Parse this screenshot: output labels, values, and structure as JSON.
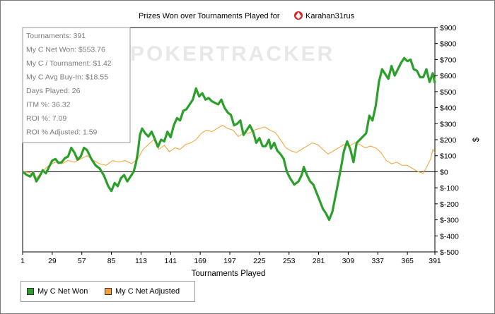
{
  "chart_data": {
    "type": "line",
    "title": "Prizes Won over Tournaments Played for",
    "player": "Karahan31rus",
    "xlabel": "Tournaments Played",
    "ylabel": "$",
    "watermark": "POKERTRACKER",
    "x_ticks": [
      1,
      29,
      57,
      85,
      113,
      141,
      169,
      197,
      225,
      253,
      281,
      309,
      337,
      365,
      391
    ],
    "y_ticks": [
      "$900",
      "$800",
      "$700",
      "$600",
      "$500",
      "$400",
      "$300",
      "$200",
      "$100",
      "$0",
      "$-100",
      "$-200",
      "$-300",
      "$-400",
      "$-500"
    ],
    "xlim": [
      1,
      391
    ],
    "ylim": [
      -500,
      900
    ],
    "y_right_axis": true,
    "grid": false,
    "legend_position": "bottom-left",
    "zero_line": true,
    "stats": [
      "Tournaments: 391",
      "My C Net Won: $553.76",
      "My C / Tournament: $1.42",
      "My C Avg Buy-In: $18.55",
      "Days Played: 26",
      "ITM %: 36.32",
      "ROI %: 7.09",
      "ROI % Adjusted: 1.59"
    ],
    "series": [
      {
        "name": "My C Net Won",
        "color": "#2aa02a",
        "points": [
          [
            1,
            0
          ],
          [
            5,
            -20
          ],
          [
            8,
            -30
          ],
          [
            11,
            -5
          ],
          [
            14,
            -60
          ],
          [
            17,
            -30
          ],
          [
            20,
            10
          ],
          [
            23,
            -10
          ],
          [
            26,
            30
          ],
          [
            29,
            70
          ],
          [
            32,
            80
          ],
          [
            35,
            55
          ],
          [
            38,
            60
          ],
          [
            41,
            85
          ],
          [
            44,
            95
          ],
          [
            47,
            150
          ],
          [
            50,
            120
          ],
          [
            53,
            75
          ],
          [
            56,
            95
          ],
          [
            59,
            150
          ],
          [
            62,
            135
          ],
          [
            66,
            80
          ],
          [
            70,
            40
          ],
          [
            74,
            20
          ],
          [
            78,
            -25
          ],
          [
            82,
            -90
          ],
          [
            85,
            -120
          ],
          [
            88,
            -70
          ],
          [
            91,
            -90
          ],
          [
            94,
            -40
          ],
          [
            97,
            -20
          ],
          [
            100,
            -60
          ],
          [
            103,
            -30
          ],
          [
            106,
            0
          ],
          [
            108,
            50
          ],
          [
            110,
            120
          ],
          [
            112,
            230
          ],
          [
            114,
            270
          ],
          [
            117,
            240
          ],
          [
            120,
            220
          ],
          [
            123,
            250
          ],
          [
            126,
            205
          ],
          [
            129,
            155
          ],
          [
            132,
            200
          ],
          [
            135,
            190
          ],
          [
            138,
            250
          ],
          [
            141,
            215
          ],
          [
            144,
            290
          ],
          [
            147,
            335
          ],
          [
            150,
            320
          ],
          [
            153,
            380
          ],
          [
            156,
            390
          ],
          [
            159,
            420
          ],
          [
            162,
            450
          ],
          [
            165,
            520
          ],
          [
            168,
            470
          ],
          [
            171,
            490
          ],
          [
            174,
            450
          ],
          [
            177,
            460
          ],
          [
            180,
            440
          ],
          [
            183,
            430
          ],
          [
            186,
            420
          ],
          [
            189,
            450
          ],
          [
            192,
            400
          ],
          [
            195,
            370
          ],
          [
            198,
            355
          ],
          [
            201,
            290
          ],
          [
            204,
            300
          ],
          [
            207,
            320
          ],
          [
            210,
            230
          ],
          [
            213,
            260
          ],
          [
            216,
            290
          ],
          [
            219,
            250
          ],
          [
            222,
            180
          ],
          [
            225,
            210
          ],
          [
            228,
            160
          ],
          [
            231,
            160
          ],
          [
            234,
            200
          ],
          [
            236,
            145
          ],
          [
            239,
            180
          ],
          [
            242,
            130
          ],
          [
            245,
            110
          ],
          [
            248,
            80
          ],
          [
            251,
            0
          ],
          [
            254,
            -40
          ],
          [
            258,
            -80
          ],
          [
            262,
            -60
          ],
          [
            265,
            -20
          ],
          [
            267,
            30
          ],
          [
            270,
            -20
          ],
          [
            273,
            -60
          ],
          [
            276,
            -80
          ],
          [
            279,
            -130
          ],
          [
            282,
            -180
          ],
          [
            285,
            -230
          ],
          [
            288,
            -260
          ],
          [
            291,
            -300
          ],
          [
            294,
            -250
          ],
          [
            297,
            -150
          ],
          [
            300,
            -50
          ],
          [
            302,
            20
          ],
          [
            305,
            130
          ],
          [
            308,
            190
          ],
          [
            311,
            140
          ],
          [
            314,
            60
          ],
          [
            317,
            180
          ],
          [
            320,
            200
          ],
          [
            323,
            220
          ],
          [
            326,
            240
          ],
          [
            329,
            350
          ],
          [
            332,
            320
          ],
          [
            335,
            410
          ],
          [
            338,
            560
          ],
          [
            341,
            640
          ],
          [
            344,
            610
          ],
          [
            347,
            580
          ],
          [
            350,
            660
          ],
          [
            353,
            600
          ],
          [
            356,
            640
          ],
          [
            359,
            680
          ],
          [
            362,
            710
          ],
          [
            365,
            690
          ],
          [
            368,
            700
          ],
          [
            371,
            640
          ],
          [
            374,
            630
          ],
          [
            377,
            590
          ],
          [
            380,
            590
          ],
          [
            383,
            640
          ],
          [
            386,
            560
          ],
          [
            389,
            615
          ],
          [
            391,
            554
          ]
        ]
      },
      {
        "name": "My C Net Adjusted",
        "color": "#f5a030",
        "points": [
          [
            1,
            0
          ],
          [
            8,
            -5
          ],
          [
            14,
            -40
          ],
          [
            20,
            5
          ],
          [
            26,
            40
          ],
          [
            32,
            60
          ],
          [
            38,
            50
          ],
          [
            44,
            70
          ],
          [
            50,
            60
          ],
          [
            56,
            80
          ],
          [
            62,
            100
          ],
          [
            68,
            70
          ],
          [
            74,
            50
          ],
          [
            80,
            40
          ],
          [
            86,
            70
          ],
          [
            92,
            60
          ],
          [
            98,
            70
          ],
          [
            104,
            50
          ],
          [
            110,
            80
          ],
          [
            115,
            140
          ],
          [
            120,
            170
          ],
          [
            125,
            200
          ],
          [
            130,
            140
          ],
          [
            135,
            165
          ],
          [
            140,
            125
          ],
          [
            145,
            150
          ],
          [
            150,
            140
          ],
          [
            155,
            170
          ],
          [
            160,
            180
          ],
          [
            165,
            200
          ],
          [
            170,
            240
          ],
          [
            175,
            260
          ],
          [
            180,
            250
          ],
          [
            185,
            270
          ],
          [
            190,
            290
          ],
          [
            195,
            270
          ],
          [
            200,
            260
          ],
          [
            205,
            220
          ],
          [
            210,
            240
          ],
          [
            215,
            240
          ],
          [
            220,
            260
          ],
          [
            225,
            270
          ],
          [
            230,
            280
          ],
          [
            235,
            260
          ],
          [
            240,
            245
          ],
          [
            245,
            200
          ],
          [
            250,
            150
          ],
          [
            255,
            130
          ],
          [
            260,
            120
          ],
          [
            265,
            140
          ],
          [
            270,
            160
          ],
          [
            275,
            180
          ],
          [
            280,
            170
          ],
          [
            285,
            140
          ],
          [
            290,
            110
          ],
          [
            295,
            130
          ],
          [
            300,
            150
          ],
          [
            305,
            170
          ],
          [
            310,
            160
          ],
          [
            315,
            180
          ],
          [
            320,
            170
          ],
          [
            325,
            150
          ],
          [
            330,
            160
          ],
          [
            335,
            150
          ],
          [
            340,
            120
          ],
          [
            345,
            70
          ],
          [
            350,
            50
          ],
          [
            355,
            60
          ],
          [
            360,
            40
          ],
          [
            365,
            40
          ],
          [
            370,
            20
          ],
          [
            375,
            0
          ],
          [
            380,
            -10
          ],
          [
            384,
            40
          ],
          [
            387,
            80
          ],
          [
            389,
            140
          ],
          [
            391,
            120
          ]
        ]
      }
    ]
  }
}
